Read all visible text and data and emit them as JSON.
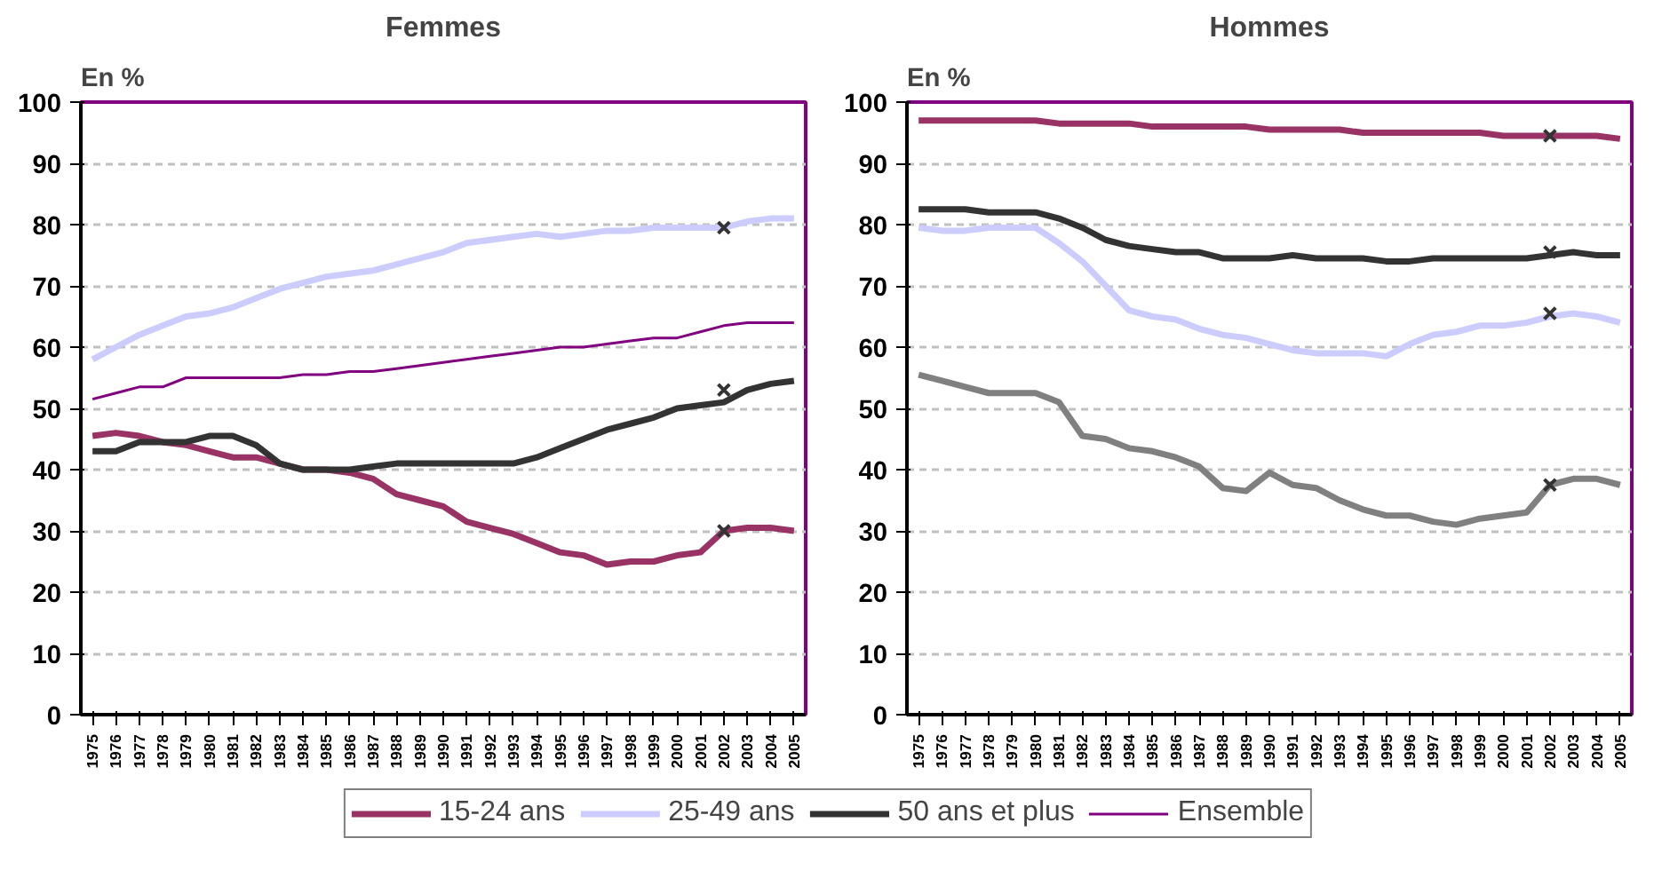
{
  "chart_data": [
    {
      "type": "line",
      "title": "Femmes",
      "ylabel": "En %",
      "categories": [
        "1975",
        "1976",
        "1977",
        "1978",
        "1979",
        "1980",
        "1981",
        "1982",
        "1983",
        "1984",
        "1985",
        "1986",
        "1987",
        "1988",
        "1989",
        "1990",
        "1991",
        "1992",
        "1993",
        "1994",
        "1995",
        "1996",
        "1997",
        "1998",
        "1999",
        "2000",
        "2001",
        "2002",
        "2003",
        "2004",
        "2005"
      ],
      "ylim": [
        0,
        100
      ],
      "yticks": [
        0,
        10,
        20,
        30,
        40,
        50,
        60,
        70,
        80,
        90,
        100
      ],
      "grid": "y",
      "legend": "bottom",
      "series": [
        {
          "name": "15-24 ans",
          "color": "#993366",
          "values": [
            45.5,
            46,
            45.5,
            44.5,
            44,
            43,
            42,
            42,
            41,
            40,
            40,
            39.5,
            38.5,
            36,
            35,
            34,
            31.5,
            30.5,
            29.5,
            28,
            26.5,
            26,
            24.5,
            25,
            25,
            26,
            26.5,
            30,
            30.5,
            30.5,
            30
          ]
        },
        {
          "name": "25-49 ans",
          "color": "#ccccff",
          "values": [
            58,
            60,
            62,
            63.5,
            65,
            65.5,
            66.5,
            68,
            69.5,
            70.5,
            71.5,
            72,
            72.5,
            73.5,
            74.5,
            75.5,
            77,
            77.5,
            78,
            78.5,
            78,
            78.5,
            79,
            79,
            79.5,
            79.5,
            79.5,
            79.5,
            80.5,
            81,
            81
          ]
        },
        {
          "name": "50 ans et plus",
          "color": "#333333",
          "values": [
            43,
            43,
            44.5,
            44.5,
            44.5,
            45.5,
            45.5,
            44,
            41,
            40,
            40,
            40,
            40.5,
            41,
            41,
            41,
            41,
            41,
            41,
            42,
            43.5,
            45,
            46.5,
            47.5,
            48.5,
            50,
            50.5,
            51,
            53,
            54,
            54.5
          ]
        },
        {
          "name": "Ensemble",
          "color": "#800080",
          "values": [
            51.5,
            52.5,
            53.5,
            53.5,
            55,
            55,
            55,
            55,
            55,
            55.5,
            55.5,
            56,
            56,
            56.5,
            57,
            57.5,
            58,
            58.5,
            59,
            59.5,
            60,
            60,
            60.5,
            61,
            61.5,
            61.5,
            62.5,
            63.5,
            64,
            64,
            64
          ]
        },
        {
          "type": "scatter",
          "marker": "cross",
          "color": "#333333",
          "values": [
            null,
            null,
            null,
            null,
            null,
            null,
            null,
            null,
            null,
            null,
            null,
            null,
            null,
            null,
            null,
            null,
            null,
            null,
            null,
            null,
            null,
            null,
            null,
            null,
            null,
            null,
            null,
            30,
            null,
            null,
            null
          ]
        },
        {
          "type": "scatter",
          "marker": "cross",
          "color": "#333333",
          "values": [
            null,
            null,
            null,
            null,
            null,
            null,
            null,
            null,
            null,
            null,
            null,
            null,
            null,
            null,
            null,
            null,
            null,
            null,
            null,
            null,
            null,
            null,
            null,
            null,
            null,
            null,
            null,
            79.5,
            null,
            null,
            null
          ]
        },
        {
          "type": "scatter",
          "marker": "cross",
          "color": "#333333",
          "values": [
            null,
            null,
            null,
            null,
            null,
            null,
            null,
            null,
            null,
            null,
            null,
            null,
            null,
            null,
            null,
            null,
            null,
            null,
            null,
            null,
            null,
            null,
            null,
            null,
            null,
            null,
            null,
            53,
            null,
            null,
            null
          ]
        }
      ]
    },
    {
      "type": "line",
      "title": "Hommes",
      "ylabel": "En %",
      "categories": [
        "1975",
        "1976",
        "1977",
        "1978",
        "1979",
        "1980",
        "1981",
        "1982",
        "1983",
        "1984",
        "1985",
        "1986",
        "1987",
        "1988",
        "1989",
        "1990",
        "1991",
        "1992",
        "1993",
        "1994",
        "1995",
        "1996",
        "1997",
        "1998",
        "1999",
        "2000",
        "2001",
        "2002",
        "2003",
        "2004",
        "2005"
      ],
      "ylim": [
        0,
        100
      ],
      "yticks": [
        0,
        10,
        20,
        30,
        40,
        50,
        60,
        70,
        80,
        90,
        100
      ],
      "grid": "y",
      "series": [
        {
          "color": "#993366",
          "values": [
            97,
            97,
            97,
            97,
            97,
            97,
            96.5,
            96.5,
            96.5,
            96.5,
            96,
            96,
            96,
            96,
            96,
            95.5,
            95.5,
            95.5,
            95.5,
            95,
            95,
            95,
            95,
            95,
            95,
            94.5,
            94.5,
            94.5,
            94.5,
            94.5,
            94
          ]
        },
        {
          "color": "#ccccff",
          "values": [
            79.5,
            79,
            79,
            79.5,
            79.5,
            79.5,
            77,
            74,
            70,
            66,
            65,
            64.5,
            63,
            62,
            61.5,
            60.5,
            59.5,
            59,
            59,
            59,
            58.5,
            60.5,
            62,
            62.5,
            63.5,
            63.5,
            64,
            65,
            65.5,
            65,
            64
          ]
        },
        {
          "color": "#333333",
          "values": [
            82.5,
            82.5,
            82.5,
            82,
            82,
            82,
            81,
            79.5,
            77.5,
            76.5,
            76,
            75.5,
            75.5,
            74.5,
            74.5,
            74.5,
            75,
            74.5,
            74.5,
            74.5,
            74,
            74,
            74.5,
            74.5,
            74.5,
            74.5,
            74.5,
            75,
            75.5,
            75,
            75
          ]
        },
        {
          "color": "#808080",
          "values": [
            55.5,
            54.5,
            53.5,
            52.5,
            52.5,
            52.5,
            51,
            45.5,
            45,
            43.5,
            43,
            42,
            40.5,
            37,
            36.5,
            39.5,
            37.5,
            37,
            35,
            33.5,
            32.5,
            32.5,
            31.5,
            31,
            32,
            32.5,
            33,
            37.5,
            38.5,
            38.5,
            37.5
          ]
        },
        {
          "type": "scatter",
          "marker": "cross",
          "color": "#333333",
          "values": [
            null,
            null,
            null,
            null,
            null,
            null,
            null,
            null,
            null,
            null,
            null,
            null,
            null,
            null,
            null,
            null,
            null,
            null,
            null,
            null,
            null,
            null,
            null,
            null,
            null,
            null,
            null,
            94.5,
            null,
            null,
            null
          ]
        },
        {
          "type": "scatter",
          "marker": "cross",
          "color": "#333333",
          "values": [
            null,
            null,
            null,
            null,
            null,
            null,
            null,
            null,
            null,
            null,
            null,
            null,
            null,
            null,
            null,
            null,
            null,
            null,
            null,
            null,
            null,
            null,
            null,
            null,
            null,
            null,
            null,
            75.5,
            null,
            null,
            null
          ]
        },
        {
          "type": "scatter",
          "marker": "cross",
          "color": "#333333",
          "values": [
            null,
            null,
            null,
            null,
            null,
            null,
            null,
            null,
            null,
            null,
            null,
            null,
            null,
            null,
            null,
            null,
            null,
            null,
            null,
            null,
            null,
            null,
            null,
            null,
            null,
            null,
            null,
            65.5,
            null,
            null,
            null
          ]
        },
        {
          "type": "scatter",
          "marker": "cross",
          "color": "#333333",
          "values": [
            null,
            null,
            null,
            null,
            null,
            null,
            null,
            null,
            null,
            null,
            null,
            null,
            null,
            null,
            null,
            null,
            null,
            null,
            null,
            null,
            null,
            null,
            null,
            null,
            null,
            null,
            null,
            37.5,
            null,
            null,
            null
          ]
        }
      ]
    }
  ]
}
